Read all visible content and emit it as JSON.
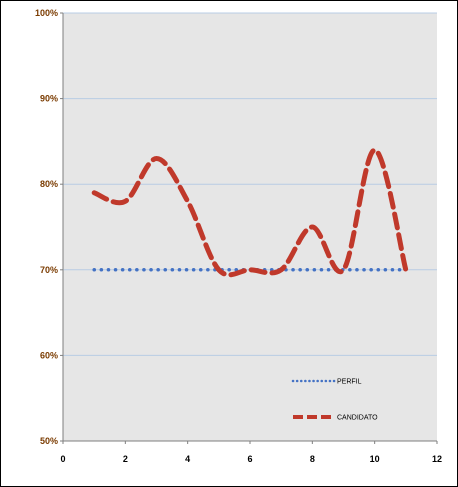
{
  "chart_data": {
    "type": "line",
    "x_ticks": [
      "0",
      "2",
      "4",
      "6",
      "8",
      "10",
      "12"
    ],
    "y_ticks": [
      "50%",
      "60%",
      "70%",
      "80%",
      "90%",
      "100%"
    ],
    "xlim": [
      0,
      12
    ],
    "ylim": [
      50,
      100
    ],
    "grid": "horizontal",
    "legend_position": "bottom-right",
    "plot_background": "#e6e6e6",
    "gridline_color": "#b8cce4",
    "series": [
      {
        "name": "PERFIL",
        "style": "dotted",
        "color": "#4472c4",
        "x": [
          1,
          2,
          3,
          4,
          5,
          6,
          7,
          8,
          9,
          10,
          11
        ],
        "y": [
          70,
          70,
          70,
          70,
          70,
          70,
          70,
          70,
          70,
          70,
          70
        ]
      },
      {
        "name": "CANDIDATO",
        "style": "dashed",
        "color": "#c0392b",
        "x": [
          1,
          2,
          3,
          4,
          5,
          6,
          7,
          8,
          9,
          10,
          11
        ],
        "y": [
          79,
          78,
          83,
          78,
          70,
          70,
          70,
          75,
          70,
          84,
          70
        ]
      }
    ]
  }
}
